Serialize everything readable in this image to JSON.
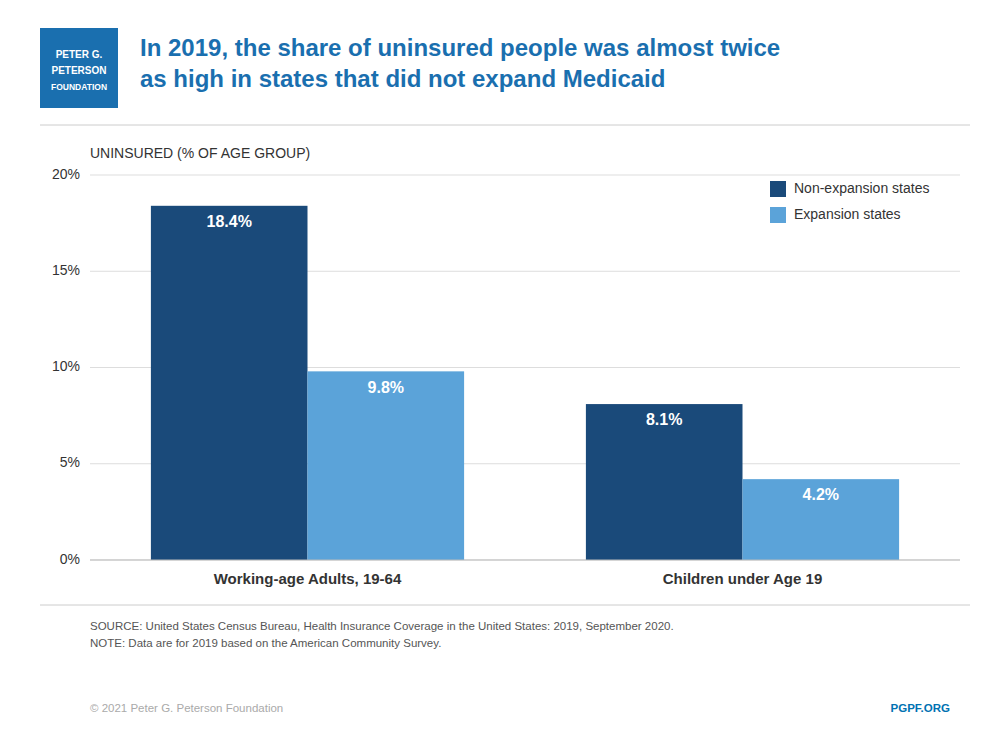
{
  "chart_data": {
    "type": "bar",
    "title": "In 2019, the share of uninsured people was almost twice\nas high in states that did not expand Medicaid",
    "y_label": "UNINSURED (% OF AGE GROUP)",
    "categories": [
      "Working-age Adults, 19-64",
      "Children under Age 19"
    ],
    "series": [
      {
        "name": "Non-expansion states",
        "color": "#1a4a7a",
        "values": [
          18.4,
          8.1
        ],
        "value_labels": [
          "18.4%",
          "8.1%"
        ]
      },
      {
        "name": "Expansion states",
        "color": "#5ba3d9",
        "values": [
          9.8,
          4.2
        ],
        "value_labels": [
          "9.8%",
          "4.2%"
        ]
      }
    ],
    "ylim": [
      0,
      20
    ],
    "yticks": [
      {
        "value": 0,
        "label": "0%"
      },
      {
        "value": 5,
        "label": "5%"
      },
      {
        "value": 10,
        "label": "10%"
      },
      {
        "value": 15,
        "label": "15%"
      },
      {
        "value": 20,
        "label": "20%"
      }
    ],
    "grid": true,
    "legend": "upper right",
    "data_labels": true,
    "annotations": [
      "PETER G.",
      "PETERSON",
      "FOUNDATION",
      "SOURCE: United States Census Bureau, Health Insurance Coverage in the United States: 2019, September 2020.\nNOTE: Data are for 2019 based on the American Community Survey.",
      "© 2021 Peter G. Peterson Foundation",
      "PGPF.ORG"
    ]
  }
}
